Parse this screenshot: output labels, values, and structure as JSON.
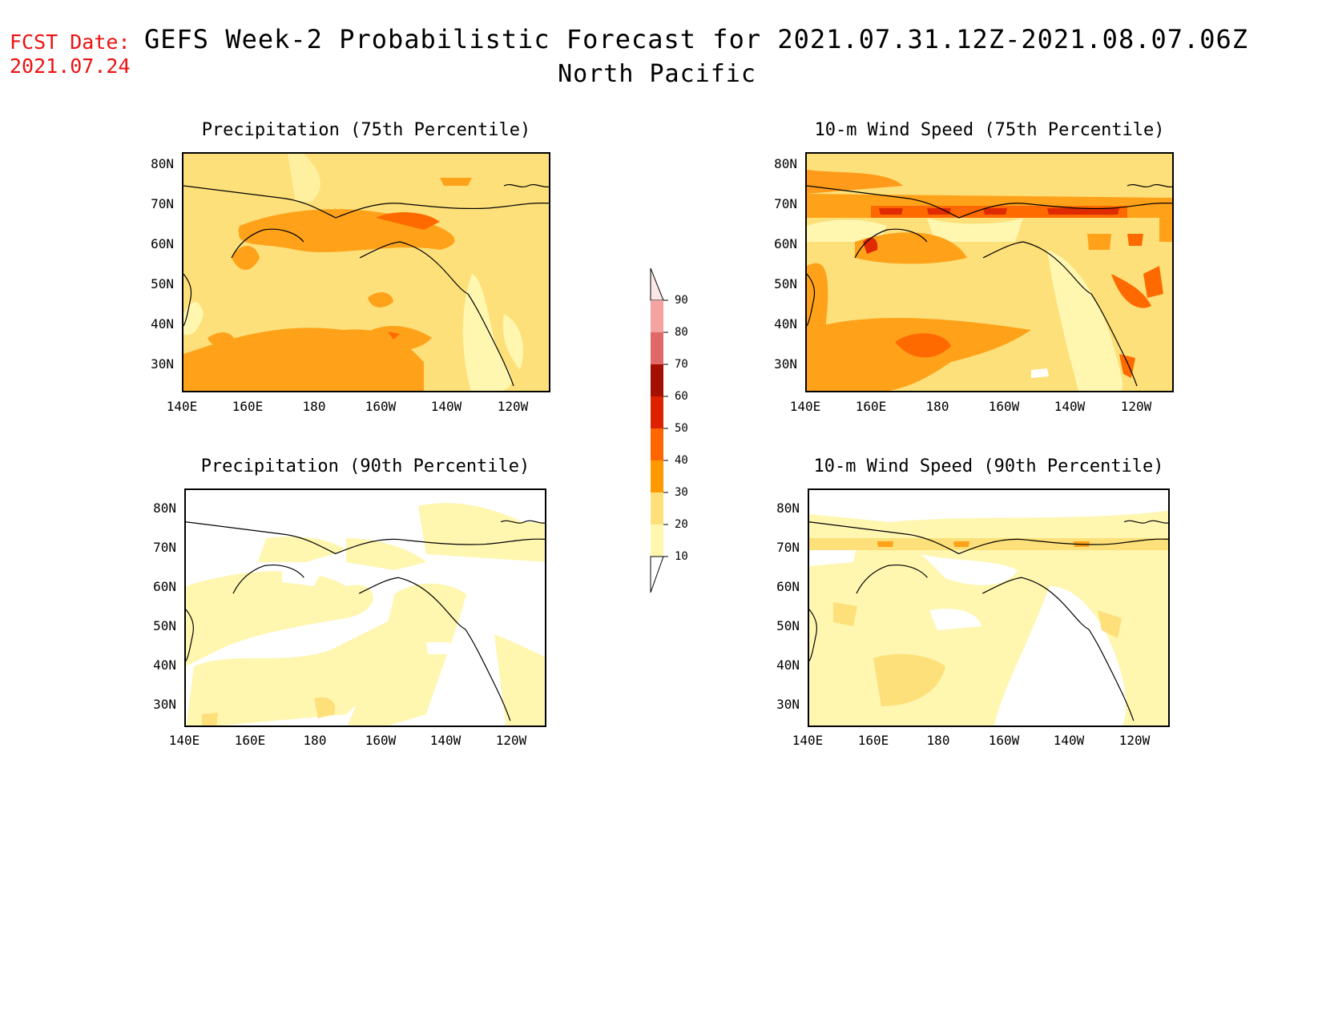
{
  "header": {
    "fcst_label": "FCST Date:",
    "fcst_date": "2021.07.24",
    "title": "GEFS Week-2 Probabilistic Forecast for 2021.07.31.12Z-2021.08.07.06Z",
    "region": "North Pacific"
  },
  "axes": {
    "lat_labels": [
      "80N",
      "70N",
      "60N",
      "50N",
      "40N",
      "30N"
    ],
    "lon_labels": [
      "140E",
      "160E",
      "180",
      "160W",
      "140W",
      "120W"
    ]
  },
  "panels": [
    {
      "title": "Precipitation (75th Percentile)"
    },
    {
      "title": "10-m Wind Speed (75th Percentile)"
    },
    {
      "title": "Precipitation (90th Percentile)"
    },
    {
      "title": "10-m Wind Speed (90th Percentile)"
    }
  ],
  "colorbar": {
    "labels": [
      "90",
      "80",
      "70",
      "60",
      "50",
      "40",
      "30",
      "20",
      "10"
    ],
    "colors": [
      "#fde0e0",
      "#f4a3a3",
      "#e06868",
      "#a50f00",
      "#dd2200",
      "#ff6600",
      "#ff9900",
      "#fde07a",
      "#fff7b0"
    ]
  },
  "palette": {
    "c10": "#fff6b0",
    "c20": "#fde07a",
    "c30": "#ffa21a",
    "c40": "#ff6a00",
    "c50": "#e02a00",
    "land": "#000000"
  }
}
